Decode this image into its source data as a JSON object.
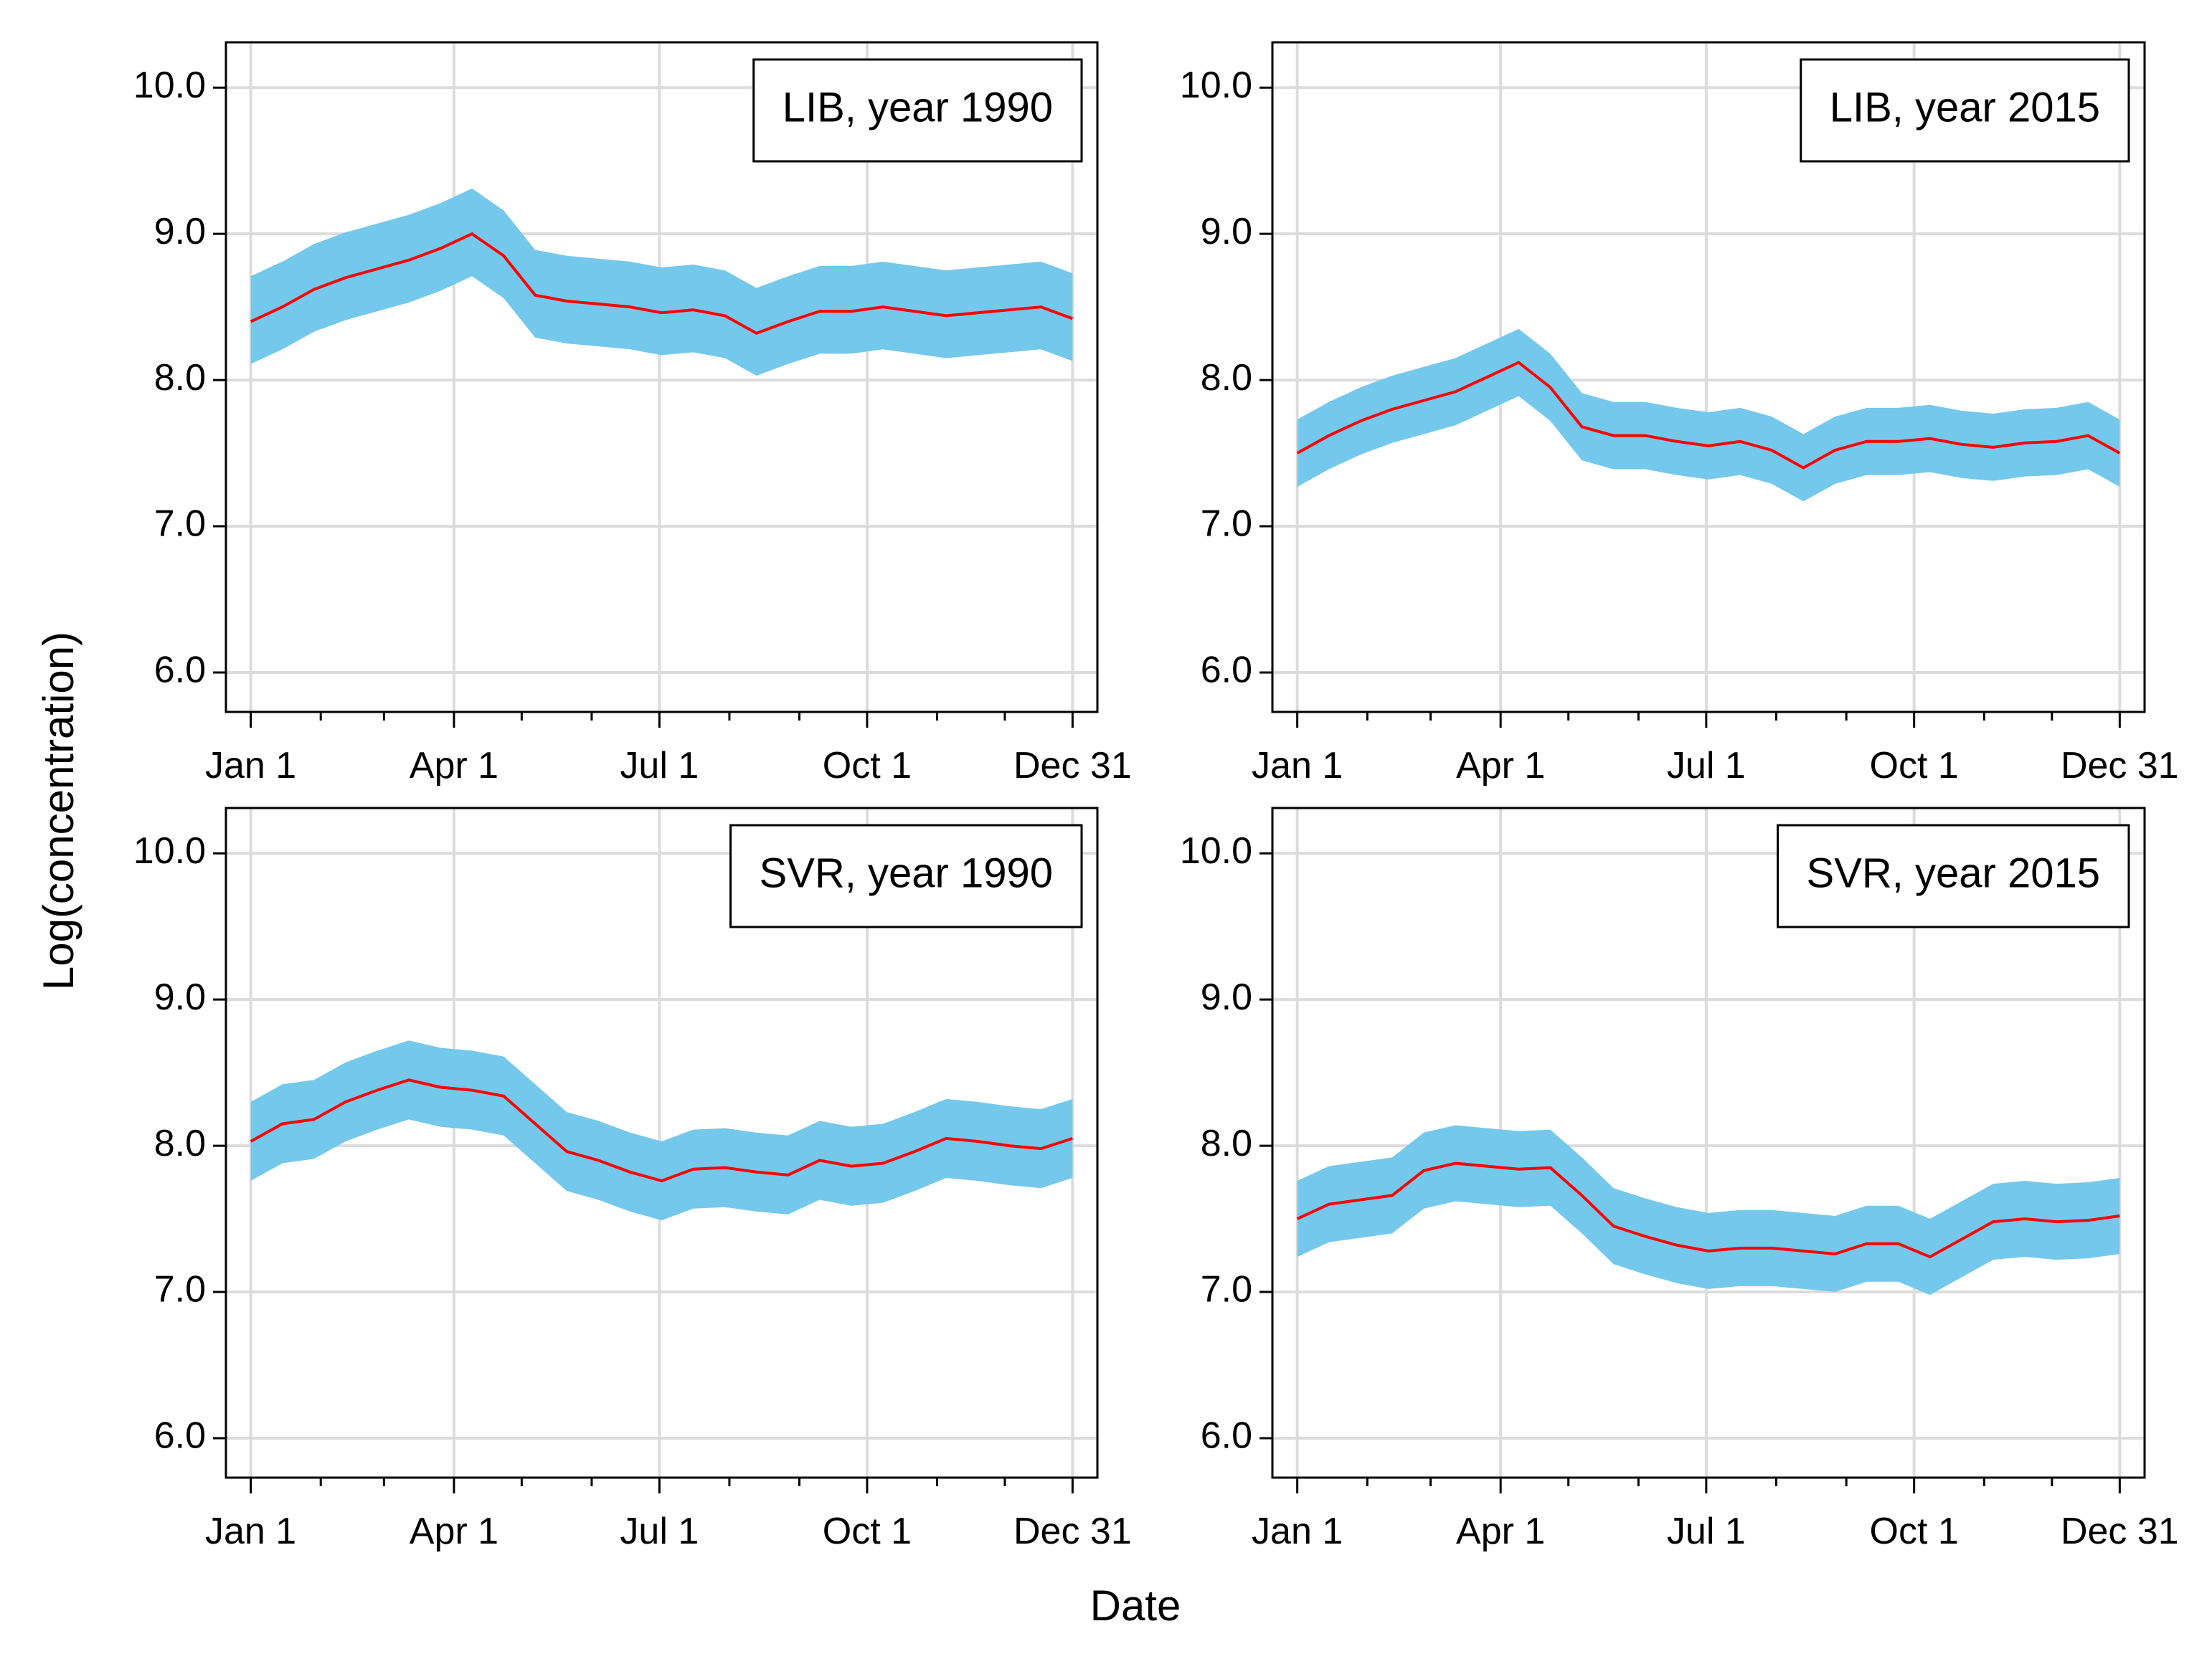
{
  "ylabel": "Log(concentration)",
  "xlabel": "Date",
  "chart_data": [
    {
      "type": "line",
      "title": "LIB, year 1990",
      "x": [
        1,
        15,
        29,
        43,
        57,
        71,
        85,
        99,
        113,
        127,
        141,
        155,
        169,
        183,
        197,
        211,
        225,
        239,
        253,
        267,
        281,
        295,
        309,
        323,
        337,
        351,
        365
      ],
      "xlim": [
        -10,
        376
      ],
      "xticks": [
        {
          "value": 1,
          "label": "Jan 1"
        },
        {
          "value": 91,
          "label": "Apr 1"
        },
        {
          "value": 182,
          "label": "Jul 1"
        },
        {
          "value": 274,
          "label": "Oct 1"
        },
        {
          "value": 365,
          "label": "Dec 31"
        }
      ],
      "xminorticks": [
        32,
        60,
        121,
        152,
        213,
        244,
        305,
        335
      ],
      "ylim": [
        5.73,
        10.31
      ],
      "yticks": [
        {
          "value": 6,
          "label": "6.0"
        },
        {
          "value": 7,
          "label": "7.0"
        },
        {
          "value": 8,
          "label": "8.0"
        },
        {
          "value": 9,
          "label": "9.0"
        },
        {
          "value": 10,
          "label": "10.0"
        }
      ],
      "grid": true,
      "band_color": "#74c8ec",
      "series": [
        {
          "color": "#ff0000",
          "values": [
            8.4,
            8.5,
            8.62,
            8.7,
            8.76,
            8.82,
            8.9,
            9.0,
            8.85,
            8.58,
            8.54,
            8.52,
            8.5,
            8.46,
            8.48,
            8.44,
            8.32,
            8.4,
            8.47,
            8.47,
            8.5,
            8.47,
            8.44,
            8.46,
            8.48,
            8.5,
            8.42
          ],
          "lower": [
            8.11,
            8.21,
            8.33,
            8.41,
            8.47,
            8.53,
            8.61,
            8.71,
            8.56,
            8.29,
            8.25,
            8.23,
            8.21,
            8.17,
            8.19,
            8.15,
            8.03,
            8.11,
            8.18,
            8.18,
            8.21,
            8.18,
            8.15,
            8.17,
            8.19,
            8.21,
            8.13
          ],
          "upper": [
            8.71,
            8.81,
            8.93,
            9.01,
            9.07,
            9.13,
            9.21,
            9.31,
            9.16,
            8.89,
            8.85,
            8.83,
            8.81,
            8.77,
            8.79,
            8.75,
            8.63,
            8.71,
            8.78,
            8.78,
            8.81,
            8.78,
            8.75,
            8.77,
            8.79,
            8.81,
            8.73
          ]
        }
      ]
    },
    {
      "type": "line",
      "title": "LIB, year 2015",
      "x": [
        1,
        15,
        29,
        43,
        57,
        71,
        85,
        99,
        113,
        127,
        141,
        155,
        169,
        183,
        197,
        211,
        225,
        239,
        253,
        267,
        281,
        295,
        309,
        323,
        337,
        351,
        365
      ],
      "xlim": [
        -10,
        376
      ],
      "xticks": [
        {
          "value": 1,
          "label": "Jan 1"
        },
        {
          "value": 91,
          "label": "Apr 1"
        },
        {
          "value": 182,
          "label": "Jul 1"
        },
        {
          "value": 274,
          "label": "Oct 1"
        },
        {
          "value": 365,
          "label": "Dec 31"
        }
      ],
      "xminorticks": [
        32,
        60,
        121,
        152,
        213,
        244,
        305,
        335
      ],
      "ylim": [
        5.73,
        10.31
      ],
      "yticks": [
        {
          "value": 6,
          "label": "6.0"
        },
        {
          "value": 7,
          "label": "7.0"
        },
        {
          "value": 8,
          "label": "8.0"
        },
        {
          "value": 9,
          "label": "9.0"
        },
        {
          "value": 10,
          "label": "10.0"
        }
      ],
      "grid": true,
      "band_color": "#74c8ec",
      "series": [
        {
          "color": "#ff0000",
          "values": [
            7.5,
            7.62,
            7.72,
            7.8,
            7.86,
            7.92,
            8.02,
            8.12,
            7.95,
            7.68,
            7.62,
            7.62,
            7.58,
            7.55,
            7.58,
            7.52,
            7.4,
            7.52,
            7.58,
            7.58,
            7.6,
            7.56,
            7.54,
            7.57,
            7.58,
            7.62,
            7.5
          ],
          "lower": [
            7.27,
            7.39,
            7.49,
            7.57,
            7.63,
            7.69,
            7.79,
            7.89,
            7.72,
            7.45,
            7.39,
            7.39,
            7.35,
            7.32,
            7.35,
            7.29,
            7.17,
            7.29,
            7.35,
            7.35,
            7.37,
            7.33,
            7.31,
            7.34,
            7.35,
            7.39,
            7.27
          ],
          "upper": [
            7.73,
            7.85,
            7.95,
            8.03,
            8.09,
            8.15,
            8.25,
            8.35,
            8.18,
            7.91,
            7.85,
            7.85,
            7.81,
            7.78,
            7.81,
            7.75,
            7.63,
            7.75,
            7.81,
            7.81,
            7.83,
            7.79,
            7.77,
            7.8,
            7.81,
            7.85,
            7.73
          ]
        }
      ]
    },
    {
      "type": "line",
      "title": "SVR, year 1990",
      "x": [
        1,
        15,
        29,
        43,
        57,
        71,
        85,
        99,
        113,
        127,
        141,
        155,
        169,
        183,
        197,
        211,
        225,
        239,
        253,
        267,
        281,
        295,
        309,
        323,
        337,
        351,
        365
      ],
      "xlim": [
        -10,
        376
      ],
      "xticks": [
        {
          "value": 1,
          "label": "Jan 1"
        },
        {
          "value": 91,
          "label": "Apr 1"
        },
        {
          "value": 182,
          "label": "Jul 1"
        },
        {
          "value": 274,
          "label": "Oct 1"
        },
        {
          "value": 365,
          "label": "Dec 31"
        }
      ],
      "xminorticks": [
        32,
        60,
        121,
        152,
        213,
        244,
        305,
        335
      ],
      "ylim": [
        5.73,
        10.31
      ],
      "yticks": [
        {
          "value": 6,
          "label": "6.0"
        },
        {
          "value": 7,
          "label": "7.0"
        },
        {
          "value": 8,
          "label": "8.0"
        },
        {
          "value": 9,
          "label": "9.0"
        },
        {
          "value": 10,
          "label": "10.0"
        }
      ],
      "grid": true,
      "band_color": "#74c8ec",
      "series": [
        {
          "color": "#ff0000",
          "values": [
            8.03,
            8.15,
            8.18,
            8.3,
            8.38,
            8.45,
            8.4,
            8.38,
            8.34,
            8.15,
            7.96,
            7.9,
            7.82,
            7.76,
            7.84,
            7.85,
            7.82,
            7.8,
            7.9,
            7.86,
            7.88,
            7.96,
            8.05,
            8.03,
            8.0,
            7.98,
            8.05
          ],
          "lower": [
            7.76,
            7.88,
            7.91,
            8.03,
            8.11,
            8.18,
            8.13,
            8.11,
            8.07,
            7.88,
            7.69,
            7.63,
            7.55,
            7.49,
            7.57,
            7.58,
            7.55,
            7.53,
            7.63,
            7.59,
            7.61,
            7.69,
            7.78,
            7.76,
            7.73,
            7.71,
            7.78
          ],
          "upper": [
            8.3,
            8.42,
            8.45,
            8.57,
            8.65,
            8.72,
            8.67,
            8.65,
            8.61,
            8.42,
            8.23,
            8.17,
            8.09,
            8.03,
            8.11,
            8.12,
            8.09,
            8.07,
            8.17,
            8.13,
            8.15,
            8.23,
            8.32,
            8.3,
            8.27,
            8.25,
            8.32
          ]
        }
      ]
    },
    {
      "type": "line",
      "title": "SVR, year 2015",
      "x": [
        1,
        15,
        29,
        43,
        57,
        71,
        85,
        99,
        113,
        127,
        141,
        155,
        169,
        183,
        197,
        211,
        225,
        239,
        253,
        267,
        281,
        295,
        309,
        323,
        337,
        351,
        365
      ],
      "xlim": [
        -10,
        376
      ],
      "xticks": [
        {
          "value": 1,
          "label": "Jan 1"
        },
        {
          "value": 91,
          "label": "Apr 1"
        },
        {
          "value": 182,
          "label": "Jul 1"
        },
        {
          "value": 274,
          "label": "Oct 1"
        },
        {
          "value": 365,
          "label": "Dec 31"
        }
      ],
      "xminorticks": [
        32,
        60,
        121,
        152,
        213,
        244,
        305,
        335
      ],
      "ylim": [
        5.73,
        10.31
      ],
      "yticks": [
        {
          "value": 6,
          "label": "6.0"
        },
        {
          "value": 7,
          "label": "7.0"
        },
        {
          "value": 8,
          "label": "8.0"
        },
        {
          "value": 9,
          "label": "9.0"
        },
        {
          "value": 10,
          "label": "10.0"
        }
      ],
      "grid": true,
      "band_color": "#74c8ec",
      "series": [
        {
          "color": "#ff0000",
          "values": [
            7.5,
            7.6,
            7.63,
            7.66,
            7.83,
            7.88,
            7.86,
            7.84,
            7.85,
            7.66,
            7.45,
            7.38,
            7.32,
            7.28,
            7.3,
            7.3,
            7.28,
            7.26,
            7.33,
            7.33,
            7.24,
            7.36,
            7.48,
            7.5,
            7.48,
            7.49,
            7.52
          ],
          "lower": [
            7.24,
            7.34,
            7.37,
            7.4,
            7.57,
            7.62,
            7.6,
            7.58,
            7.59,
            7.4,
            7.19,
            7.12,
            7.06,
            7.02,
            7.04,
            7.04,
            7.02,
            7.0,
            7.07,
            7.07,
            6.98,
            7.1,
            7.22,
            7.24,
            7.22,
            7.23,
            7.26
          ],
          "upper": [
            7.76,
            7.86,
            7.89,
            7.92,
            8.09,
            8.14,
            8.12,
            8.1,
            8.11,
            7.92,
            7.71,
            7.64,
            7.58,
            7.54,
            7.56,
            7.56,
            7.54,
            7.52,
            7.59,
            7.59,
            7.5,
            7.62,
            7.74,
            7.76,
            7.74,
            7.75,
            7.78
          ]
        }
      ]
    }
  ]
}
